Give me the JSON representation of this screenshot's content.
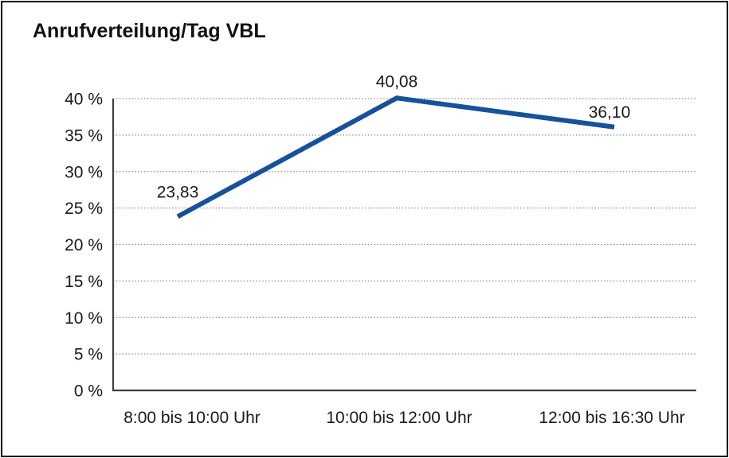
{
  "chart_data": {
    "type": "line",
    "title": "Anrufverteilung/Tag VBL",
    "categories": [
      "8:00 bis 10:00 Uhr",
      "10:00 bis 12:00 Uhr",
      "12:00 bis 16:30 Uhr"
    ],
    "values": [
      23.83,
      40.08,
      36.1
    ],
    "point_labels": [
      "23,83",
      "40,08",
      "36,10"
    ],
    "y_ticks": [
      0,
      5,
      10,
      15,
      20,
      25,
      30,
      35,
      40
    ],
    "y_tick_labels": [
      "0 %",
      "5 %",
      "10 %",
      "15 %",
      "20 %",
      "25 %",
      "30 %",
      "35 %",
      "40 %"
    ],
    "ylim": [
      0,
      40
    ],
    "xlabel": "",
    "ylabel": "",
    "grid": "horizontal-dotted",
    "legend": "none",
    "line_color": "#17519b",
    "grid_color": "#848484",
    "axis_color": "#3f3f3f",
    "text_color": "#1a1a1a"
  }
}
